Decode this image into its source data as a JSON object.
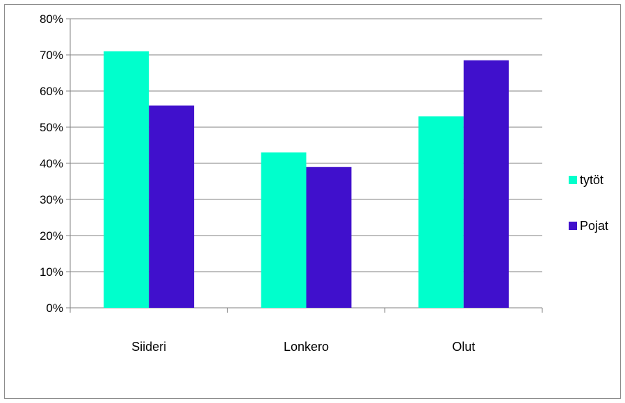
{
  "chart_data": {
    "type": "bar",
    "categories": [
      "Siideri",
      "Lonkero",
      "Olut"
    ],
    "series": [
      {
        "name": "tytöt",
        "values": [
          71,
          43,
          53
        ],
        "color": "#00FFCC"
      },
      {
        "name": "Pojat",
        "values": [
          56,
          39,
          68.5
        ],
        "color": "#4010CC"
      }
    ],
    "ylim": [
      0,
      80
    ],
    "yticks": [
      0,
      10,
      20,
      30,
      40,
      50,
      60,
      70,
      80
    ],
    "ytick_labels": [
      "0%",
      "10%",
      "20%",
      "30%",
      "40%",
      "50%",
      "60%",
      "70%",
      "80%"
    ],
    "grid": true,
    "legend_position": "right",
    "colors": {
      "gridline": "#808080",
      "axis": "#808080",
      "frame": "#8c8c8c"
    }
  }
}
